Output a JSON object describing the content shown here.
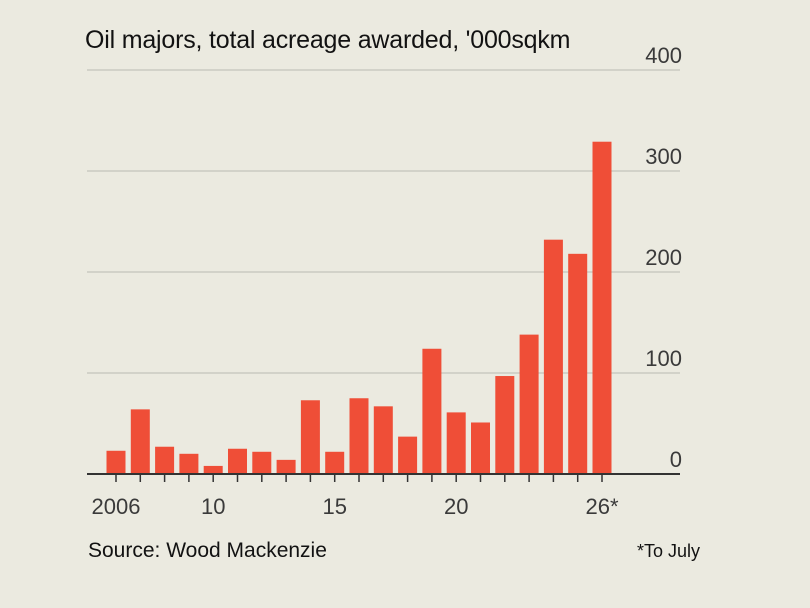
{
  "title": "Oil majors, total acreage awarded, '000sqkm",
  "source": "Source: Wood Mackenzie",
  "footnote": "*To July",
  "colors": {
    "bar": "#ef4e37",
    "grid": "#c9c9c1",
    "axis": "#333333",
    "text": "#121212",
    "tick_label": "#3a3a3a",
    "background": "#ebeae0"
  },
  "chart_data": {
    "type": "bar",
    "title": "Oil majors, total acreage awarded, '000sqkm",
    "xlabel": "",
    "ylabel": "",
    "categories": [
      "2006",
      "2007",
      "2008",
      "2009",
      "2010",
      "2011",
      "2012",
      "2013",
      "2014",
      "2015",
      "2016",
      "2017",
      "2018",
      "2019",
      "2020",
      "2021",
      "2022",
      "2023",
      "2024",
      "2025",
      "2026*"
    ],
    "values": [
      23,
      64,
      27,
      20,
      8,
      25,
      22,
      14,
      73,
      22,
      75,
      67,
      37,
      124,
      61,
      51,
      97,
      138,
      232,
      218,
      329
    ],
    "ylim": [
      0,
      400
    ],
    "y_ticks": [
      0,
      100,
      200,
      300,
      400
    ],
    "y_tick_labels": [
      "0",
      "100",
      "200",
      "300",
      "400"
    ],
    "x_tick_labels": [
      {
        "category": "2006",
        "label": "2006"
      },
      {
        "category": "2010",
        "label": "10"
      },
      {
        "category": "2015",
        "label": "15"
      },
      {
        "category": "2020",
        "label": "20"
      },
      {
        "category": "2026*",
        "label": "26*"
      }
    ],
    "y_axis_position": "right",
    "grid": true,
    "legend": "none"
  }
}
